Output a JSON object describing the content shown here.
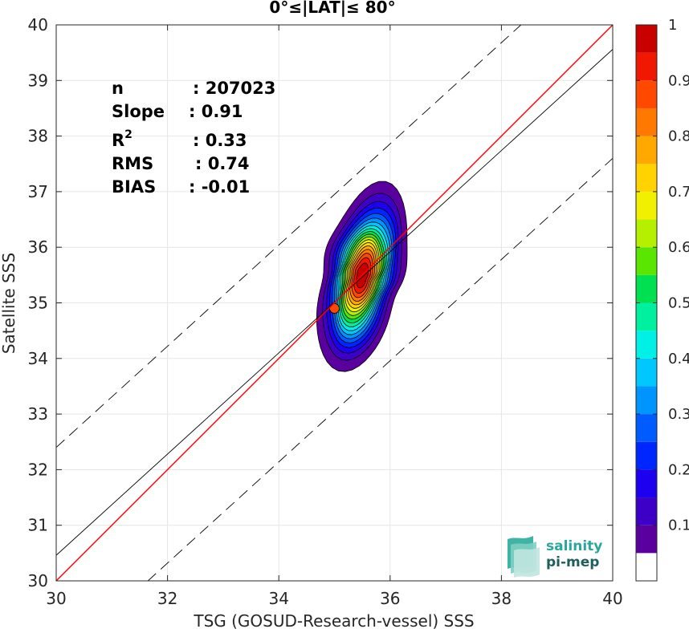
{
  "chart_data": {
    "type": "heatmap",
    "title": "0°≤|LAT|≤ 80°",
    "xlabel": "TSG (GOSUD-Research-vessel) SSS",
    "ylabel": "Satellite SSS",
    "xlim": [
      30,
      40
    ],
    "ylim": [
      30,
      40
    ],
    "xticks": [
      "30",
      "32",
      "34",
      "36",
      "38",
      "40"
    ],
    "yticks": [
      "30",
      "31",
      "32",
      "33",
      "34",
      "35",
      "36",
      "37",
      "38",
      "39",
      "40"
    ],
    "grid": true,
    "stats": [
      {
        "label": "n",
        "value": ": 207023"
      },
      {
        "label": "Slope",
        "value": ": 0.91"
      },
      {
        "label": "R",
        "sup": "2",
        "value": ": 0.33"
      },
      {
        "label": "RMS",
        "value": ": 0.74"
      },
      {
        "label": "BIAS",
        "value": ": -0.01"
      }
    ],
    "lines": {
      "identity": {
        "slope": 1.0,
        "intercept": 0.0,
        "color": "#ff0000"
      },
      "fit": {
        "slope": 0.91,
        "intercept": 3.16,
        "color": "#000000"
      },
      "upper_bound": {
        "slope": 0.91,
        "intercept": 5.1,
        "dashed": true
      },
      "lower_bound": {
        "slope": 0.91,
        "intercept": 1.2,
        "dashed": true
      }
    },
    "density": {
      "center": [
        35.5,
        35.5
      ],
      "covariance": [
        [
          0.11,
          0.1
        ],
        [
          0.1,
          0.49
        ]
      ],
      "secondary_peak": [
        35.0,
        34.9
      ]
    },
    "colorbar": {
      "range": [
        0,
        1
      ],
      "ticks": [
        "0.1",
        "0.2",
        "0.3",
        "0.4",
        "0.5",
        "0.6",
        "0.7",
        "0.8",
        "0.9",
        "1"
      ],
      "levels": [
        0.05,
        0.1,
        0.15,
        0.2,
        0.25,
        0.3,
        0.35,
        0.4,
        0.45,
        0.5,
        0.55,
        0.6,
        0.65,
        0.7,
        0.75,
        0.8,
        0.85,
        0.9,
        0.95,
        1.0
      ],
      "colors": [
        "#ffffff",
        "#5a009e",
        "#3c00c6",
        "#1e00f0",
        "#0026ff",
        "#005cff",
        "#0094ff",
        "#00c8ff",
        "#00f0e6",
        "#00f0a0",
        "#00e050",
        "#5ae600",
        "#b4f000",
        "#f0f000",
        "#ffd200",
        "#ffa800",
        "#ff7800",
        "#ff4800",
        "#f01800",
        "#c80000",
        "#8c0000"
      ]
    }
  },
  "logo": {
    "line1": "salinity",
    "line2": "pi-mep"
  }
}
